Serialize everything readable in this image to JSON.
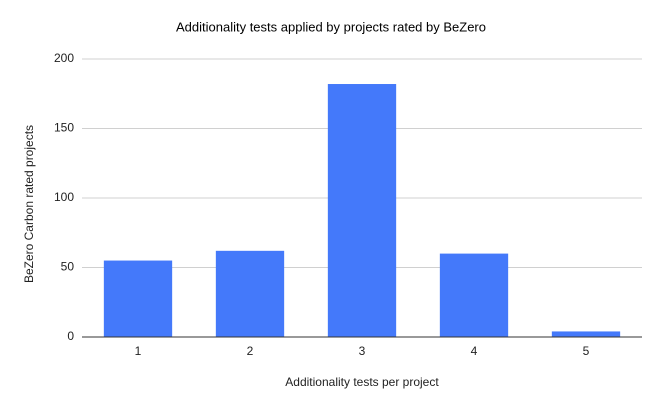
{
  "chart_data": {
    "type": "bar",
    "title": "Additionality tests applied by projects rated by BeZero",
    "x_label": "Additionality tests per project",
    "y_label": "BeZero Carbon rated projects",
    "categories": [
      "1",
      "2",
      "3",
      "4",
      "5"
    ],
    "values": [
      55,
      62,
      182,
      60,
      4
    ],
    "color": "#4479fa",
    "ylim": [
      0,
      200
    ],
    "yticks": [
      0,
      50,
      100,
      150,
      200
    ],
    "grid": true
  }
}
